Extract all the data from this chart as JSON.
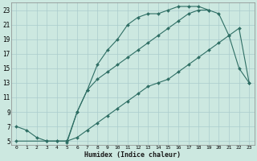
{
  "xlabel": "Humidex (Indice chaleur)",
  "bg_color": "#cce8e0",
  "grid_color": "#aacccc",
  "line_color": "#2e6e64",
  "xlim": [
    -0.5,
    23.5
  ],
  "ylim": [
    4.5,
    24.0
  ],
  "xticks": [
    0,
    1,
    2,
    3,
    4,
    5,
    6,
    7,
    8,
    9,
    10,
    11,
    12,
    13,
    14,
    15,
    16,
    17,
    18,
    19,
    20,
    21,
    22,
    23
  ],
  "yticks": [
    5,
    7,
    9,
    11,
    13,
    15,
    17,
    19,
    21,
    23
  ],
  "curve1_x": [
    0,
    1,
    2,
    3,
    4,
    5,
    6,
    7,
    8,
    9,
    10,
    11,
    12,
    13,
    14,
    15,
    16,
    17,
    18,
    19
  ],
  "curve1_y": [
    7.0,
    6.5,
    5.5,
    5.0,
    5.0,
    5.0,
    9.0,
    12.0,
    15.5,
    17.5,
    19.0,
    21.0,
    22.0,
    22.5,
    22.5,
    23.0,
    23.5,
    23.5,
    23.5,
    23.0
  ],
  "curve2_x": [
    0,
    3,
    4,
    5,
    6,
    7,
    8,
    9,
    10,
    11,
    12,
    13,
    14,
    15,
    16,
    17,
    18,
    19,
    20,
    21,
    22,
    23
  ],
  "curve2_y": [
    5.0,
    5.0,
    5.0,
    5.0,
    5.5,
    6.5,
    7.5,
    8.5,
    9.5,
    10.5,
    11.5,
    12.5,
    13.0,
    13.5,
    14.5,
    15.5,
    16.5,
    17.5,
    18.5,
    19.5,
    20.5,
    13.0
  ],
  "curve3_x": [
    5,
    6,
    7,
    8,
    9,
    10,
    11,
    12,
    13,
    14,
    15,
    16,
    17,
    18,
    19,
    20,
    21,
    22,
    23
  ],
  "curve3_y": [
    4.8,
    9.0,
    12.0,
    13.5,
    14.5,
    15.5,
    16.5,
    17.5,
    18.5,
    19.5,
    20.5,
    21.5,
    22.5,
    23.0,
    23.0,
    22.5,
    19.5,
    15.0,
    13.0
  ]
}
